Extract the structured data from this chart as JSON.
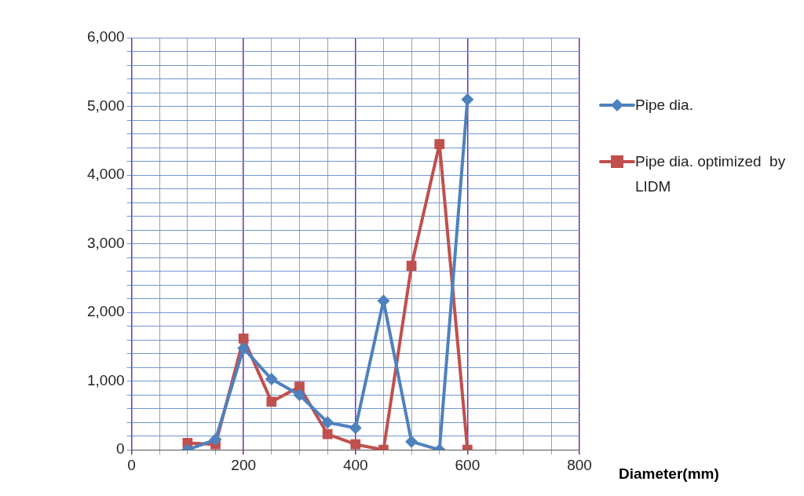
{
  "chart_data": {
    "type": "line",
    "xlabel": "Diameter(mm)",
    "x": [
      100,
      150,
      200,
      250,
      300,
      350,
      400,
      450,
      500,
      550,
      600
    ],
    "series": [
      {
        "name": "Pipe dia.",
        "color": "#4f81bd",
        "marker": "diamond",
        "values": [
          0,
          150,
          1480,
          1030,
          800,
          400,
          320,
          2170,
          120,
          0,
          5100
        ]
      },
      {
        "name": "Pipe dia. optimized  by LIDM",
        "color": "#c0504d",
        "marker": "square",
        "values": [
          100,
          80,
          1620,
          700,
          920,
          230,
          80,
          0,
          2680,
          4450,
          0
        ]
      }
    ],
    "xlim": [
      0,
      800
    ],
    "xticks": [
      0,
      {
        "value": 50,
        "label": null
      },
      {
        "value": 100,
        "label": null
      },
      {
        "value": 150,
        "label": null
      },
      200,
      {
        "value": 250,
        "label": null
      },
      {
        "value": 300,
        "label": null
      },
      {
        "value": 350,
        "label": null
      },
      400,
      {
        "value": 450,
        "label": null
      },
      {
        "value": 500,
        "label": null
      },
      {
        "value": 550,
        "label": null
      },
      600,
      {
        "value": 650,
        "label": null
      },
      {
        "value": 700,
        "label": null
      },
      {
        "value": 750,
        "label": null
      },
      800
    ],
    "ylim": [
      0,
      6000
    ],
    "yticks": [
      {
        "value": 0,
        "label": "0"
      },
      {
        "value": 200,
        "label": null
      },
      {
        "value": 400,
        "label": null
      },
      {
        "value": 600,
        "label": null
      },
      {
        "value": 800,
        "label": null
      },
      {
        "value": 1000,
        "label": "1,000"
      },
      {
        "value": 1200,
        "label": null
      },
      {
        "value": 1400,
        "label": null
      },
      {
        "value": 1600,
        "label": null
      },
      {
        "value": 1800,
        "label": null
      },
      {
        "value": 2000,
        "label": "2,000"
      },
      {
        "value": 2200,
        "label": null
      },
      {
        "value": 2400,
        "label": null
      },
      {
        "value": 2600,
        "label": null
      },
      {
        "value": 2800,
        "label": null
      },
      {
        "value": 3000,
        "label": "3,000"
      },
      {
        "value": 3200,
        "label": null
      },
      {
        "value": 3400,
        "label": null
      },
      {
        "value": 3600,
        "label": null
      },
      {
        "value": 3800,
        "label": null
      },
      {
        "value": 4000,
        "label": "4,000"
      },
      {
        "value": 4200,
        "label": null
      },
      {
        "value": 4400,
        "label": null
      },
      {
        "value": 4600,
        "label": null
      },
      {
        "value": 4800,
        "label": null
      },
      {
        "value": 5000,
        "label": "5,000"
      },
      {
        "value": 5200,
        "label": null
      },
      {
        "value": 5400,
        "label": null
      },
      {
        "value": 5600,
        "label": null
      },
      {
        "value": 5800,
        "label": null
      },
      {
        "value": 6000,
        "label": "6,000"
      }
    ],
    "grid": true,
    "legend": "right",
    "line_style": "solid"
  }
}
